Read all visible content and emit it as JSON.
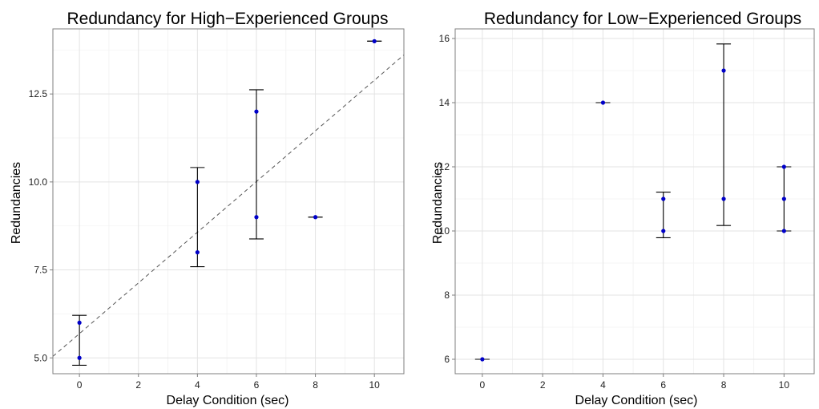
{
  "chart_data": [
    {
      "type": "scatter",
      "title": "Redundancy for High−Experienced Groups",
      "xlabel": "Delay Condition (sec)",
      "ylabel": "Redundancies",
      "xlim": [
        -0.9,
        11.0
      ],
      "ylim": [
        4.55,
        14.35
      ],
      "xticks": [
        0,
        2,
        4,
        6,
        8,
        10
      ],
      "xtick_labels": [
        "0",
        "2",
        "4",
        "6",
        "8",
        "10"
      ],
      "yticks": [
        5.0,
        7.5,
        10.0,
        12.5
      ],
      "ytick_labels": [
        "5.0",
        "7.5",
        "10.0",
        "12.5"
      ],
      "grid": true,
      "points": [
        {
          "x": 0,
          "y": 6
        },
        {
          "x": 0,
          "y": 5
        },
        {
          "x": 4,
          "y": 10
        },
        {
          "x": 4,
          "y": 8
        },
        {
          "x": 6,
          "y": 12
        },
        {
          "x": 6,
          "y": 9
        },
        {
          "x": 8,
          "y": 9
        },
        {
          "x": 10,
          "y": 14
        }
      ],
      "error_bars": [
        {
          "x": 0,
          "ymin": 4.79,
          "ymax": 6.21
        },
        {
          "x": 4,
          "ymin": 7.59,
          "ymax": 10.41
        },
        {
          "x": 6,
          "ymin": 8.38,
          "ymax": 12.62
        },
        {
          "x": 8,
          "ymin": 9.0,
          "ymax": 9.0
        },
        {
          "x": 10,
          "ymin": 14.0,
          "ymax": 14.0
        }
      ],
      "trend_line": {
        "style": "dashed",
        "intercept": 5.69,
        "slope": 0.72
      }
    },
    {
      "type": "scatter",
      "title": "Redundancy for Low−Experienced Groups",
      "xlabel": "Delay Condition (sec)",
      "ylabel": "Redundancies",
      "xlim": [
        -0.9,
        11.0
      ],
      "ylim": [
        5.55,
        16.3
      ],
      "xticks": [
        0,
        2,
        4,
        6,
        8,
        10
      ],
      "xtick_labels": [
        "0",
        "2",
        "4",
        "6",
        "8",
        "10"
      ],
      "yticks": [
        6,
        8,
        10,
        12,
        14,
        16
      ],
      "ytick_labels": [
        "6",
        "8",
        "10",
        "12",
        "14",
        "16"
      ],
      "grid": true,
      "points": [
        {
          "x": 0,
          "y": 6
        },
        {
          "x": 4,
          "y": 14
        },
        {
          "x": 6,
          "y": 11
        },
        {
          "x": 6,
          "y": 10
        },
        {
          "x": 8,
          "y": 15
        },
        {
          "x": 8,
          "y": 11
        },
        {
          "x": 10,
          "y": 12
        },
        {
          "x": 10,
          "y": 11
        },
        {
          "x": 10,
          "y": 10
        }
      ],
      "error_bars": [
        {
          "x": 0,
          "ymin": 6.0,
          "ymax": 6.0
        },
        {
          "x": 4,
          "ymin": 14.0,
          "ymax": 14.0
        },
        {
          "x": 6,
          "ymin": 9.79,
          "ymax": 11.21
        },
        {
          "x": 8,
          "ymin": 10.17,
          "ymax": 15.83
        },
        {
          "x": 10,
          "ymin": 10.0,
          "ymax": 12.0
        }
      ]
    }
  ]
}
